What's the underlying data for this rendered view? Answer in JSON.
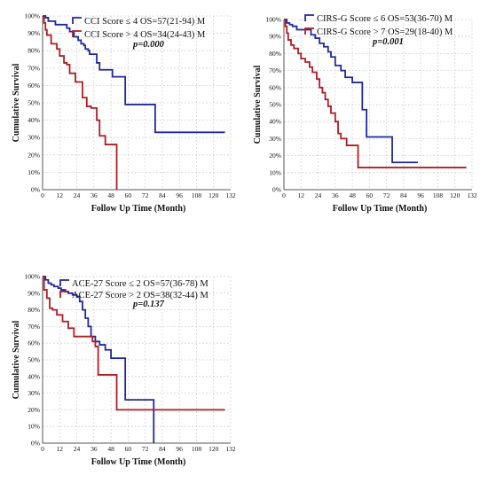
{
  "chart_data": [
    {
      "type": "line",
      "xlabel": "Follow Up Time (Month)",
      "ylabel": "Cumulative Survival",
      "xlim": [
        0,
        132
      ],
      "ylim": [
        0,
        100
      ],
      "x_ticks": [
        0,
        12,
        24,
        36,
        48,
        60,
        72,
        84,
        96,
        108,
        120,
        132
      ],
      "x_tick_labels": [
        "0",
        "12",
        "24",
        "36",
        "48",
        "60",
        "72",
        "84",
        "96",
        "108",
        "120",
        "132"
      ],
      "y_ticks": [
        0,
        10,
        20,
        30,
        40,
        50,
        60,
        70,
        80,
        90,
        100
      ],
      "y_tick_labels": [
        "0%",
        "10%",
        "20%",
        "30%",
        "40%",
        "50%",
        "60%",
        "70%",
        "80%",
        "90%",
        "100%"
      ],
      "grid": true,
      "legend_position": "top-left",
      "p_value": "p=0.000",
      "series": [
        {
          "name": "CCI Score ≤ 4  OS=57(21-94) M",
          "color": "#1f2a9e",
          "x": [
            0,
            2,
            4,
            6,
            9,
            14,
            17,
            19,
            22,
            25,
            27,
            29,
            30,
            32,
            33,
            35,
            38,
            40,
            44,
            49,
            52,
            58,
            66,
            74,
            79,
            128
          ],
          "y": [
            100,
            99,
            97,
            97,
            95,
            95,
            93,
            91,
            88,
            86,
            84,
            83,
            81,
            80,
            78,
            78,
            73,
            69,
            69,
            65,
            65,
            49,
            49,
            49,
            33,
            33
          ]
        },
        {
          "name": "CCI Score > 4  OS=34(24-43) M",
          "color": "#b01e23",
          "x": [
            0,
            1,
            2,
            3,
            6,
            8,
            10,
            12,
            15,
            17,
            19,
            23,
            26,
            28,
            31,
            34,
            38,
            40,
            44,
            47,
            51,
            52
          ],
          "y": [
            100,
            96,
            92,
            89,
            84,
            84,
            81,
            77,
            73,
            72,
            67,
            62,
            62,
            53,
            48,
            47,
            40,
            31,
            26,
            26,
            26,
            0
          ]
        }
      ]
    },
    {
      "type": "line",
      "xlabel": "Follow Up Time (Month)",
      "ylabel": "Cumulative Survival",
      "xlim": [
        0,
        132
      ],
      "ylim": [
        0,
        100
      ],
      "x_ticks": [
        0,
        12,
        24,
        36,
        48,
        60,
        72,
        84,
        96,
        108,
        120,
        132
      ],
      "x_tick_labels": [
        "0",
        "12",
        "24",
        "36",
        "48",
        "60",
        "72",
        "84",
        "96",
        "108",
        "120",
        "132"
      ],
      "y_ticks": [
        0,
        10,
        20,
        30,
        40,
        50,
        60,
        70,
        80,
        90,
        100
      ],
      "y_tick_labels": [
        "0%",
        "10%",
        "20%",
        "30%",
        "40%",
        "50%",
        "60%",
        "70%",
        "80%",
        "90%",
        "100%"
      ],
      "grid": true,
      "legend_position": "top-left",
      "p_value": "p=0.001",
      "series": [
        {
          "name": "CIRS-G Score ≤ 6  OS=53(36-70) M",
          "color": "#1f2a9e",
          "x": [
            0,
            2,
            4,
            6,
            9,
            14,
            19,
            22,
            25,
            28,
            31,
            33,
            36,
            40,
            43,
            48,
            53,
            55,
            58,
            65,
            74,
            76,
            81,
            87,
            94
          ],
          "y": [
            100,
            98,
            97,
            96,
            94,
            94,
            91,
            89,
            86,
            84,
            81,
            78,
            73,
            70,
            66,
            63,
            63,
            47,
            31,
            31,
            31,
            16,
            16,
            16,
            16
          ]
        },
        {
          "name": "CIRS-G Score > 7  OS=29(18-40) M",
          "color": "#b01e23",
          "x": [
            0,
            1,
            2,
            3,
            5,
            7,
            10,
            12,
            15,
            18,
            20,
            23,
            25,
            27,
            29,
            31,
            33,
            36,
            38,
            40,
            44,
            49,
            52,
            60,
            128
          ],
          "y": [
            100,
            96,
            92,
            88,
            85,
            83,
            80,
            77,
            75,
            72,
            69,
            65,
            60,
            57,
            53,
            49,
            45,
            40,
            33,
            30,
            26,
            26,
            13,
            13,
            13
          ]
        }
      ]
    },
    {
      "type": "line",
      "xlabel": "Follow Up Time (Month)",
      "ylabel": "Cumulative Survival",
      "xlim": [
        0,
        132
      ],
      "ylim": [
        0,
        100
      ],
      "x_ticks": [
        0,
        12,
        24,
        36,
        48,
        60,
        72,
        84,
        96,
        108,
        120,
        132
      ],
      "x_tick_labels": [
        "0",
        "12",
        "24",
        "36",
        "48",
        "60",
        "72",
        "84",
        "96",
        "108",
        "120",
        "132"
      ],
      "y_ticks": [
        0,
        10,
        20,
        30,
        40,
        50,
        60,
        70,
        80,
        90,
        100
      ],
      "y_tick_labels": [
        "0%",
        "10%",
        "20%",
        "30%",
        "40%",
        "50%",
        "60%",
        "70%",
        "80%",
        "90%",
        "100%"
      ],
      "grid": true,
      "legend_position": "top-left",
      "p_value": "p=0.137",
      "series": [
        {
          "name": "ACE-27 Score ≤ 2  OS=57(36-78) M",
          "color": "#1f2a9e",
          "x": [
            0,
            2,
            4,
            6,
            8,
            11,
            13,
            16,
            18,
            21,
            24,
            26,
            28,
            30,
            32,
            34,
            37,
            40,
            44,
            48,
            52,
            55,
            58,
            66,
            76,
            78
          ],
          "y": [
            100,
            98,
            96,
            95,
            94,
            93,
            92,
            91,
            90,
            89,
            88,
            85,
            80,
            75,
            70,
            64,
            61,
            59,
            56,
            51,
            51,
            51,
            26,
            26,
            26,
            0
          ]
        },
        {
          "name": "ACE-27 Score > 2  OS=38(32-44) M",
          "color": "#b01e23",
          "x": [
            0,
            1,
            3,
            5,
            7,
            10,
            14,
            18,
            22,
            26,
            31,
            35,
            37,
            39,
            44,
            48,
            52,
            58,
            70,
            128
          ],
          "y": [
            100,
            92,
            87,
            81,
            80,
            77,
            73,
            69,
            64,
            64,
            64,
            61,
            58,
            41,
            41,
            41,
            20,
            20,
            20,
            20
          ]
        }
      ]
    }
  ]
}
